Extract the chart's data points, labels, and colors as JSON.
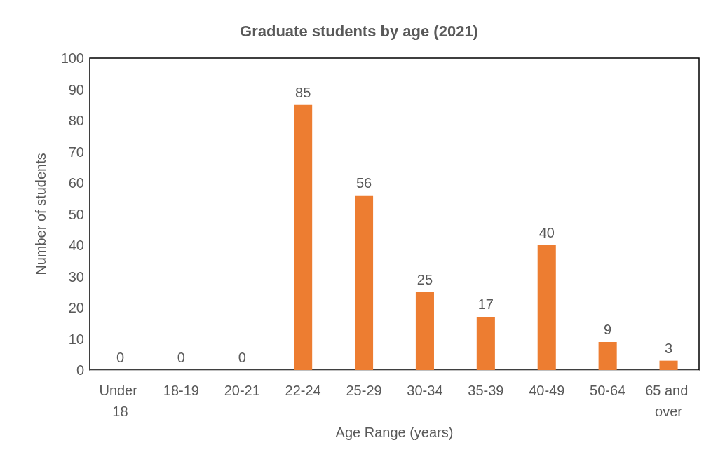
{
  "chart_data": {
    "type": "bar",
    "title": "Graduate students by age (2021)",
    "xlabel": "Age Range (years)",
    "ylabel": "Number of students",
    "categories": [
      "Under 18",
      "18-19",
      "20-21",
      "22-24",
      "25-29",
      "30-34",
      "35-39",
      "40-49",
      "50-64",
      "65 and over"
    ],
    "values": [
      0,
      0,
      0,
      85,
      56,
      25,
      17,
      40,
      9,
      3
    ],
    "color": "#ed7d31",
    "ylim": [
      0,
      100
    ],
    "yticks": [
      0,
      10,
      20,
      30,
      40,
      50,
      60,
      70,
      80,
      90,
      100
    ],
    "grid": false,
    "data_labels": true
  }
}
